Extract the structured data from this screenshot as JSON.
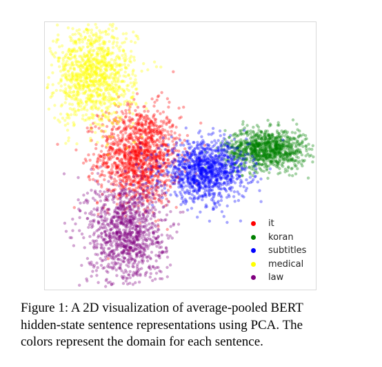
{
  "chart_data": {
    "type": "scatter",
    "title": "",
    "xlabel": "",
    "ylabel": "",
    "axes_visible": false,
    "grid": false,
    "legend_position": "bottom-right",
    "xlim": [
      -4.0,
      8.0
    ],
    "ylim": [
      -5.0,
      7.0
    ],
    "point_alpha": 0.35,
    "series": [
      {
        "name": "it",
        "color": "#ff0000",
        "center": [
          0.2,
          1.0
        ],
        "spread": [
          0.9,
          1.1
        ],
        "n": 1300
      },
      {
        "name": "koran",
        "color": "#008000",
        "center": [
          5.8,
          1.3
        ],
        "spread": [
          0.9,
          0.45
        ],
        "n": 1000
      },
      {
        "name": "subtitles",
        "color": "#0000ff",
        "center": [
          3.1,
          0.3
        ],
        "spread": [
          0.95,
          0.65
        ],
        "n": 1100
      },
      {
        "name": "medical",
        "color": "#ffff00",
        "center": [
          -1.8,
          4.6
        ],
        "spread": [
          0.9,
          1.1
        ],
        "n": 1100
      },
      {
        "name": "law",
        "color": "#800080",
        "center": [
          -0.4,
          -2.4
        ],
        "spread": [
          0.85,
          1.2
        ],
        "n": 1100
      }
    ]
  },
  "caption": {
    "line1": "Figure 1: A 2D visualization of average-pooled BERT",
    "line2": "hidden-state sentence representations using PCA. The",
    "line3": "colors represent the domain for each sentence."
  }
}
